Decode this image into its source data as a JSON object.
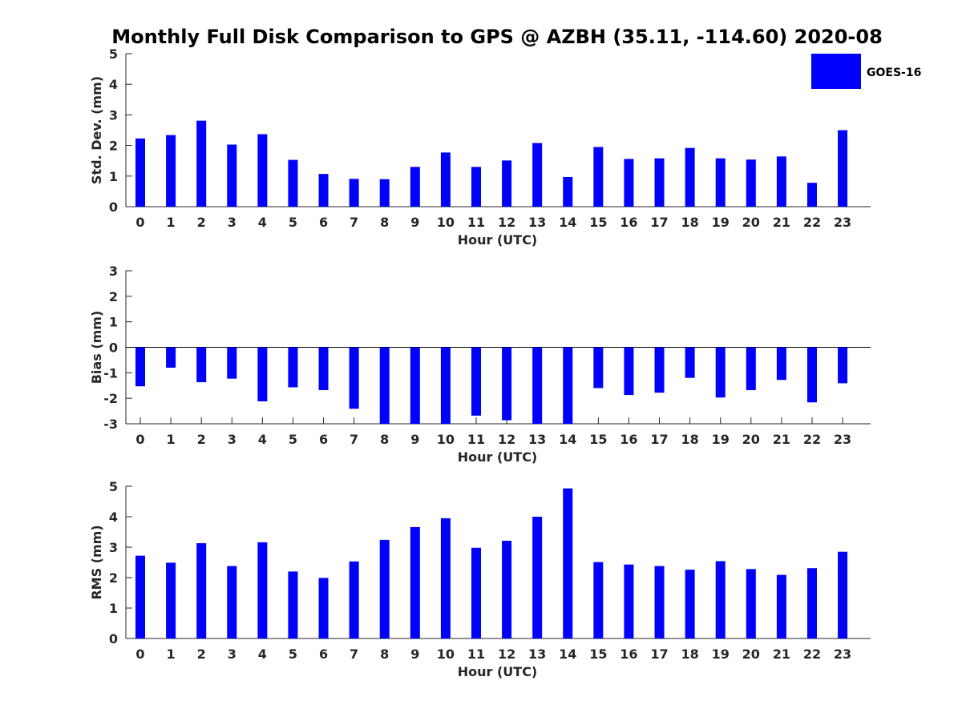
{
  "title": "Monthly Full Disk Comparison to GPS @ AZBH (35.11, -114.60) 2020-08",
  "legend": {
    "label": "GOES-16",
    "color": "#0000ff"
  },
  "chart_data": [
    {
      "type": "bar",
      "xlabel": "Hour (UTC)",
      "ylabel": "Std. Dev. (mm)",
      "ylim": [
        0,
        5
      ],
      "yticks": [
        0,
        1,
        2,
        3,
        4,
        5
      ],
      "categories": [
        "0",
        "1",
        "2",
        "3",
        "4",
        "5",
        "6",
        "7",
        "8",
        "9",
        "10",
        "11",
        "12",
        "13",
        "14",
        "15",
        "16",
        "17",
        "18",
        "19",
        "20",
        "21",
        "22",
        "23"
      ],
      "series": [
        {
          "name": "GOES-16",
          "color": "#0000ff",
          "values": [
            2.23,
            2.34,
            2.81,
            2.03,
            2.37,
            1.53,
            1.07,
            0.91,
            0.9,
            1.3,
            1.77,
            1.3,
            1.51,
            2.08,
            0.97,
            1.95,
            1.56,
            1.58,
            1.92,
            1.58,
            1.54,
            1.64,
            0.78,
            2.5
          ]
        }
      ]
    },
    {
      "type": "bar",
      "xlabel": "Hour (UTC)",
      "ylabel": "Bias (mm)",
      "ylim": [
        -3,
        3
      ],
      "yticks": [
        -3,
        -2,
        -1,
        0,
        1,
        2,
        3
      ],
      "zero_line": true,
      "categories": [
        "0",
        "1",
        "2",
        "3",
        "4",
        "5",
        "6",
        "7",
        "8",
        "9",
        "10",
        "11",
        "12",
        "13",
        "14",
        "15",
        "16",
        "17",
        "18",
        "19",
        "20",
        "21",
        "22",
        "23"
      ],
      "series": [
        {
          "name": "GOES-16",
          "color": "#0000ff",
          "values": [
            -1.53,
            -0.8,
            -1.37,
            -1.23,
            -2.12,
            -1.57,
            -1.68,
            -2.41,
            -3.0,
            -3.0,
            -3.0,
            -2.68,
            -2.86,
            -3.0,
            -3.0,
            -1.6,
            -1.87,
            -1.78,
            -1.2,
            -1.97,
            -1.68,
            -1.28,
            -2.16,
            -1.41
          ]
        }
      ]
    },
    {
      "type": "bar",
      "xlabel": "Hour (UTC)",
      "ylabel": "RMS (mm)",
      "ylim": [
        0,
        5
      ],
      "yticks": [
        0,
        1,
        2,
        3,
        4,
        5
      ],
      "categories": [
        "0",
        "1",
        "2",
        "3",
        "4",
        "5",
        "6",
        "7",
        "8",
        "9",
        "10",
        "11",
        "12",
        "13",
        "14",
        "15",
        "16",
        "17",
        "18",
        "19",
        "20",
        "21",
        "22",
        "23"
      ],
      "series": [
        {
          "name": "GOES-16",
          "color": "#0000ff",
          "values": [
            2.72,
            2.49,
            3.13,
            2.38,
            3.16,
            2.2,
            1.99,
            2.53,
            3.24,
            3.66,
            3.95,
            2.98,
            3.21,
            4.0,
            4.93,
            2.51,
            2.43,
            2.38,
            2.26,
            2.54,
            2.28,
            2.09,
            2.31,
            2.85
          ]
        }
      ]
    }
  ]
}
